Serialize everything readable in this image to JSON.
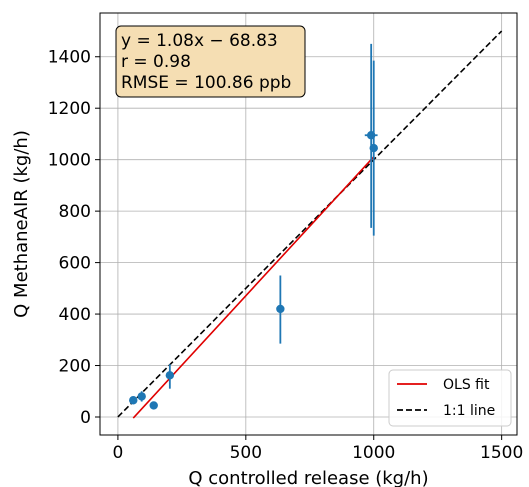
{
  "chart_data": {
    "type": "scatter",
    "title": "",
    "xlabel": "Q controlled release (kg/h)",
    "ylabel": "Q MethaneAIR (kg/h)",
    "xlim": [
      -70,
      1560
    ],
    "ylim": [
      -70,
      1570
    ],
    "x_ticks": [
      0,
      500,
      1000,
      1500
    ],
    "y_ticks": [
      0,
      200,
      400,
      600,
      800,
      1000,
      1200,
      1400
    ],
    "grid": true,
    "points": [
      {
        "x": 60,
        "y": 65,
        "yerr_low": 55,
        "yerr_high": 75,
        "xerr_low": 60,
        "xerr_high": 60
      },
      {
        "x": 93,
        "y": 80,
        "yerr_low": 60,
        "yerr_high": 100,
        "xerr_low": 90,
        "xerr_high": 96
      },
      {
        "x": 140,
        "y": 45,
        "yerr_low": 45,
        "yerr_high": 45,
        "xerr_low": 140,
        "xerr_high": 140
      },
      {
        "x": 203,
        "y": 162,
        "yerr_low": 110,
        "yerr_high": 205,
        "xerr_low": 200,
        "xerr_high": 206
      },
      {
        "x": 635,
        "y": 420,
        "yerr_low": 285,
        "yerr_high": 550,
        "xerr_low": 632,
        "xerr_high": 638
      },
      {
        "x": 990,
        "y": 1095,
        "yerr_low": 735,
        "yerr_high": 1450,
        "xerr_low": 965,
        "xerr_high": 1015
      },
      {
        "x": 1000,
        "y": 1045,
        "yerr_low": 705,
        "yerr_high": 1385,
        "xerr_low": 990,
        "xerr_high": 1010
      }
    ],
    "point_color": "#1f77b4",
    "fit_line": {
      "name": "OLS fit",
      "color": "#e00000",
      "slope": 1.08,
      "intercept": -68.83,
      "x_range": [
        60,
        1000
      ]
    },
    "identity_line": {
      "name": "1:1 line",
      "color": "#000000",
      "x_range": [
        0,
        1500
      ]
    },
    "legend": {
      "position": "bottom-right",
      "items": [
        "OLS fit",
        "1:1 line"
      ]
    },
    "annotation": {
      "position": "top-left",
      "background": "#f5deb3",
      "line1": "y = 1.08x − 68.83",
      "line2": "r = 0.98",
      "line3": "RMSE = 100.86 ppb"
    }
  }
}
